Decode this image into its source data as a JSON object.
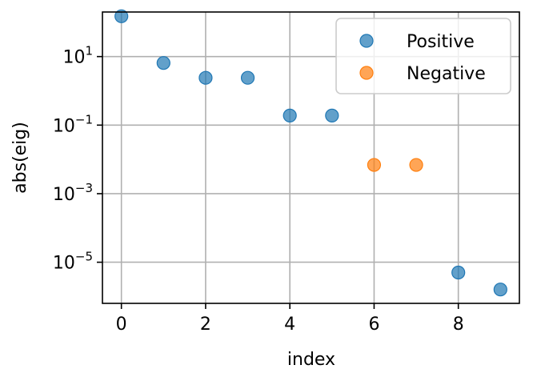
{
  "chart_data": {
    "type": "scatter",
    "title": "",
    "xlabel": "index",
    "ylabel": "abs(eig)",
    "xlim": [
      -0.45,
      9.45
    ],
    "ylim_log10": [
      -6.2,
      2.3
    ],
    "yscale": "log",
    "grid": true,
    "legend_position": "top-right",
    "x_ticks": [
      0,
      2,
      4,
      6,
      8
    ],
    "x_tick_labels": [
      "0",
      "2",
      "4",
      "6",
      "8"
    ],
    "y_ticks_log10": [
      1,
      -1,
      -3,
      -5
    ],
    "y_tick_labels": [
      {
        "base": "10",
        "exp": "1"
      },
      {
        "base": "10",
        "exp": "−1"
      },
      {
        "base": "10",
        "exp": "−3"
      },
      {
        "base": "10",
        "exp": "−5"
      }
    ],
    "series": [
      {
        "name": "Positive",
        "color": "#1f77b4",
        "x": [
          0,
          1,
          2,
          3,
          4,
          5,
          8,
          9
        ],
        "y": [
          150,
          6.5,
          2.4,
          2.4,
          0.19,
          0.19,
          5e-06,
          1.6e-06
        ]
      },
      {
        "name": "Negative",
        "color": "#ff7f0e",
        "x": [
          6,
          7
        ],
        "y": [
          0.0069,
          0.0069
        ]
      }
    ]
  }
}
